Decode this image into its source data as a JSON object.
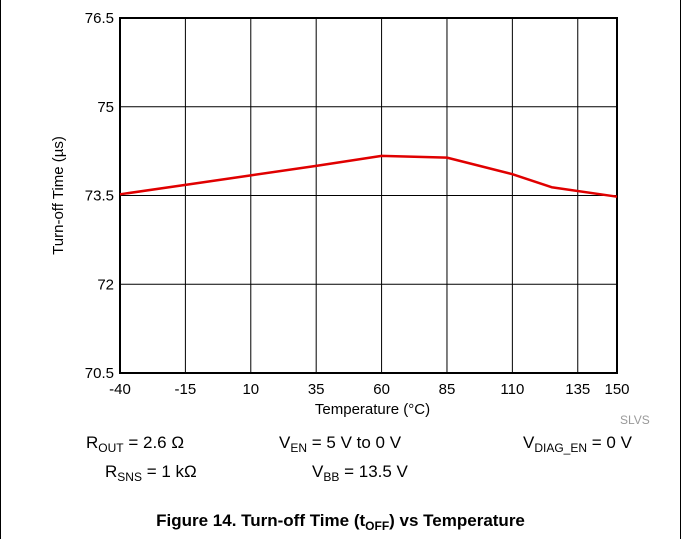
{
  "chart_data": {
    "type": "line",
    "x": [
      -40,
      -15,
      10,
      35,
      60,
      85,
      110,
      125,
      150
    ],
    "xticks": [
      "-40",
      "-15",
      "10",
      "35",
      "60",
      "85",
      "110",
      "135",
      "150"
    ],
    "xtick_values": [
      -40,
      -15,
      10,
      35,
      60,
      85,
      110,
      135,
      150
    ],
    "yticks": [
      "70.5",
      "72",
      "73.5",
      "75",
      "76.5"
    ],
    "ytick_values": [
      70.5,
      72,
      73.5,
      75,
      76.5
    ],
    "xlim": [
      -40,
      150
    ],
    "ylim": [
      70.5,
      76.5
    ],
    "xlabel": "Temperature (°C)",
    "ylabel": "Turn-off Time (µs)",
    "series": [
      {
        "values": [
          73.52,
          73.68,
          73.84,
          74.0,
          74.17,
          74.14,
          73.86,
          73.64,
          73.48
        ]
      }
    ],
    "grid": true,
    "line_color": "#e00000"
  },
  "conditions": {
    "rout": {
      "base": "R",
      "sub": "OUT",
      "rest": " = 2.6 Ω"
    },
    "ven": {
      "base": "V",
      "sub": "EN",
      "rest": " = 5 V to 0 V"
    },
    "vdiag": {
      "base": "V",
      "sub": "DIAG_EN",
      "rest": " = 0 V"
    },
    "rsns": {
      "base": "R",
      "sub": "SNS",
      "rest": " = 1 kΩ"
    },
    "vbb": {
      "base": "V",
      "sub": "BB",
      "rest": " = 13.5 V"
    }
  },
  "watermark": "SLVS",
  "caption": {
    "prefix": "Figure 14. Turn-off Time (t",
    "sub": "OFF",
    "suffix": ") vs Temperature"
  }
}
